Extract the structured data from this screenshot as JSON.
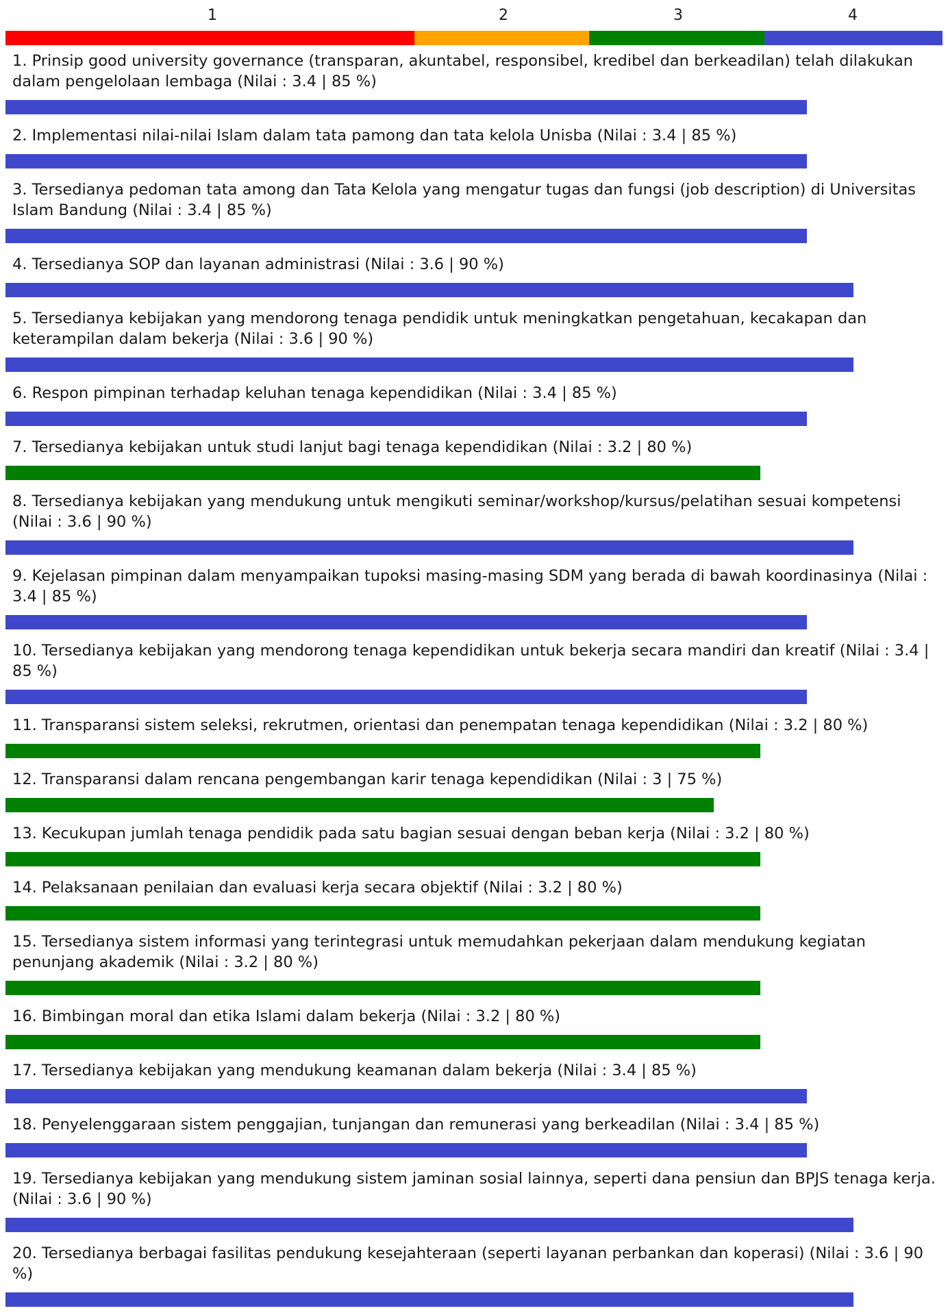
{
  "chart_data": {
    "type": "bar",
    "orientation": "horizontal",
    "scale": {
      "ticks": [
        "1",
        "2",
        "3",
        "4"
      ],
      "range": [
        1,
        4
      ],
      "segment_colors": [
        "#ff0000",
        "#ffa500",
        "#008000",
        "#3f48cc"
      ]
    },
    "items": [
      {
        "label": "1. Prinsip good university governance (transparan, akuntabel, responsibel, kredibel dan berkeadilan) telah dilakukan dalam pengelolaan lembaga (Nilai : 3.4 | 85 %)",
        "value": 3.4,
        "percent": 85,
        "color": "#3f48cc"
      },
      {
        "label": "2. Implementasi nilai-nilai Islam dalam tata pamong dan tata kelola Unisba (Nilai : 3.4 | 85 %)",
        "value": 3.4,
        "percent": 85,
        "color": "#3f48cc"
      },
      {
        "label": "3. Tersedianya pedoman tata among dan Tata Kelola yang mengatur tugas dan fungsi (job description) di Universitas Islam Bandung (Nilai : 3.4 | 85 %)",
        "value": 3.4,
        "percent": 85,
        "color": "#3f48cc"
      },
      {
        "label": "4. Tersedianya SOP dan layanan administrasi (Nilai : 3.6 | 90 %)",
        "value": 3.6,
        "percent": 90,
        "color": "#3f48cc"
      },
      {
        "label": "5. Tersedianya kebijakan yang mendorong tenaga pendidik untuk meningkatkan pengetahuan, kecakapan dan keterampilan dalam bekerja (Nilai : 3.6 | 90 %)",
        "value": 3.6,
        "percent": 90,
        "color": "#3f48cc"
      },
      {
        "label": "6. Respon pimpinan terhadap keluhan tenaga kependidikan (Nilai : 3.4 | 85 %)",
        "value": 3.4,
        "percent": 85,
        "color": "#3f48cc"
      },
      {
        "label": "7. Tersedianya kebijakan untuk studi lanjut bagi tenaga kependidikan (Nilai : 3.2 | 80 %)",
        "value": 3.2,
        "percent": 80,
        "color": "#008000"
      },
      {
        "label": "8. Tersedianya kebijakan yang mendukung untuk mengikuti seminar/workshop/kursus/pelatihan sesuai kompetensi (Nilai : 3.6 | 90 %)",
        "value": 3.6,
        "percent": 90,
        "color": "#3f48cc"
      },
      {
        "label": "9. Kejelasan pimpinan dalam menyampaikan tupoksi masing-masing SDM yang berada di bawah koordinasinya (Nilai : 3.4 | 85 %)",
        "value": 3.4,
        "percent": 85,
        "color": "#3f48cc"
      },
      {
        "label": "10. Tersedianya kebijakan yang mendorong tenaga kependidikan untuk bekerja secara mandiri dan kreatif (Nilai : 3.4 | 85 %)",
        "value": 3.4,
        "percent": 85,
        "color": "#3f48cc"
      },
      {
        "label": "11. Transparansi sistem seleksi, rekrutmen, orientasi dan penempatan tenaga kependidikan (Nilai : 3.2 | 80 %)",
        "value": 3.2,
        "percent": 80,
        "color": "#008000"
      },
      {
        "label": "12. Transparansi dalam rencana pengembangan karir tenaga kependidikan (Nilai : 3 | 75 %)",
        "value": 3,
        "percent": 75,
        "color": "#008000"
      },
      {
        "label": "13. Kecukupan jumlah tenaga pendidik pada satu bagian sesuai dengan beban kerja (Nilai : 3.2 | 80 %)",
        "value": 3.2,
        "percent": 80,
        "color": "#008000"
      },
      {
        "label": "14. Pelaksanaan penilaian dan evaluasi kerja secara objektif (Nilai : 3.2 | 80 %)",
        "value": 3.2,
        "percent": 80,
        "color": "#008000"
      },
      {
        "label": "15. Tersedianya sistem informasi yang terintegrasi untuk memudahkan pekerjaan dalam mendukung kegiatan penunjang akademik (Nilai : 3.2 | 80 %)",
        "value": 3.2,
        "percent": 80,
        "color": "#008000"
      },
      {
        "label": "16. Bimbingan moral dan etika Islami dalam bekerja (Nilai : 3.2 | 80 %)",
        "value": 3.2,
        "percent": 80,
        "color": "#008000"
      },
      {
        "label": "17. Tersedianya kebijakan yang mendukung keamanan dalam bekerja (Nilai : 3.4 | 85 %)",
        "value": 3.4,
        "percent": 85,
        "color": "#3f48cc"
      },
      {
        "label": "18. Penyelenggaraan sistem penggajian, tunjangan dan remunerasi yang berkeadilan (Nilai : 3.4 | 85 %)",
        "value": 3.4,
        "percent": 85,
        "color": "#3f48cc"
      },
      {
        "label": "19. Tersedianya kebijakan yang mendukung sistem jaminan sosial lainnya, seperti dana pensiun dan BPJS tenaga kerja. (Nilai : 3.6 | 90 %)",
        "value": 3.6,
        "percent": 90,
        "color": "#3f48cc"
      },
      {
        "label": "20. Tersedianya berbagai fasilitas pendukung kesejahteraan (seperti layanan perbankan dan koperasi) (Nilai : 3.6 | 90 %)",
        "value": 3.6,
        "percent": 90,
        "color": "#3f48cc"
      }
    ]
  }
}
